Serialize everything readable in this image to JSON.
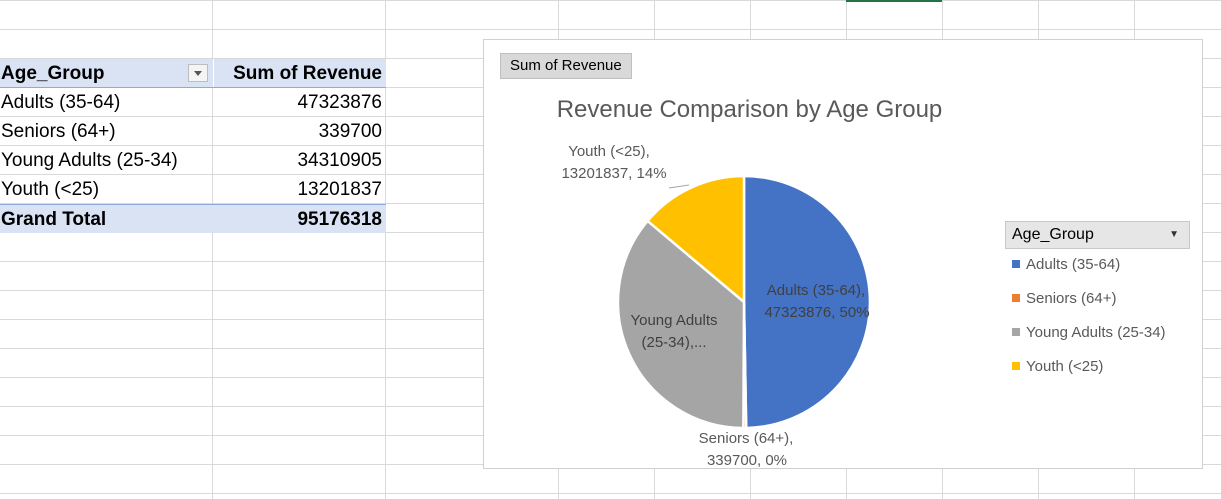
{
  "pivot": {
    "header": {
      "row_label": "Age_Group",
      "value_label": "Sum of Revenue"
    },
    "rows": [
      {
        "label": "Adults (35-64)",
        "value": "47323876"
      },
      {
        "label": "Seniors (64+)",
        "value": "339700"
      },
      {
        "label": "Young Adults (25-34)",
        "value": "34310905"
      },
      {
        "label": "Youth (<25)",
        "value": "13201837"
      }
    ],
    "total": {
      "label": "Grand Total",
      "value": "95176318"
    }
  },
  "chart": {
    "field_button": "Sum of Revenue",
    "legend_title": "Age_Group",
    "data_labels": {
      "youth": [
        "Youth (<25),",
        "13201837, 14%"
      ],
      "adults": [
        "Adults (35-64),",
        "47323876, 50%"
      ],
      "young": [
        "Young Adults",
        "(25-34),..."
      ],
      "seniors": [
        "Seniors (64+),",
        "339700, 0%"
      ]
    },
    "colors": {
      "adults": "#4472c4",
      "seniors": "#ed7d31",
      "young_adults": "#a5a5a5",
      "youth": "#ffc000"
    }
  },
  "chart_data": {
    "type": "pie",
    "title": "Revenue Comparison by Age Group",
    "categories": [
      "Adults (35-64)",
      "Seniors (64+)",
      "Young Adults (25-34)",
      "Youth (<25)"
    ],
    "values": [
      47323876,
      339700,
      34310905,
      13201837
    ],
    "percent_labels": [
      "50%",
      "0%",
      "36%",
      "14%"
    ],
    "legend": "right"
  }
}
